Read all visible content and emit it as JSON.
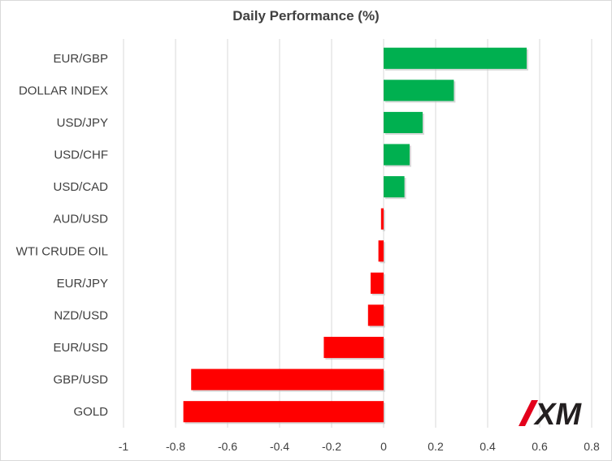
{
  "chart_data": {
    "type": "bar",
    "orientation": "horizontal",
    "title": "Daily Performance  (%)",
    "xlabel": "",
    "ylabel": "",
    "categories": [
      "EUR/GBP",
      "DOLLAR INDEX",
      "USD/JPY",
      "USD/CHF",
      "USD/CAD",
      "AUD/USD",
      "WTI CRUDE OIL",
      "EUR/JPY",
      "NZD/USD",
      "EUR/USD",
      "GBP/USD",
      "GOLD"
    ],
    "values": [
      0.55,
      0.27,
      0.15,
      0.1,
      0.08,
      -0.01,
      -0.02,
      -0.05,
      -0.06,
      -0.23,
      -0.74,
      -0.77
    ],
    "xlim": [
      -1,
      0.8
    ],
    "xticks": [
      -1,
      -0.8,
      -0.6,
      -0.4,
      -0.2,
      0,
      0.2,
      0.4,
      0.6,
      0.8
    ],
    "xtick_labels": [
      "-1",
      "-0.8",
      "-0.6",
      "-0.4",
      "-0.2",
      "0",
      "0.2",
      "0.4",
      "0.6",
      "0.8"
    ],
    "grid": true,
    "colors": {
      "positive": "#00b050",
      "negative": "#ff0000",
      "grid": "#d9d9d9",
      "text": "#404040"
    }
  },
  "logo": {
    "text": "XM",
    "color": "#231f20",
    "accent": "#e3001b"
  }
}
